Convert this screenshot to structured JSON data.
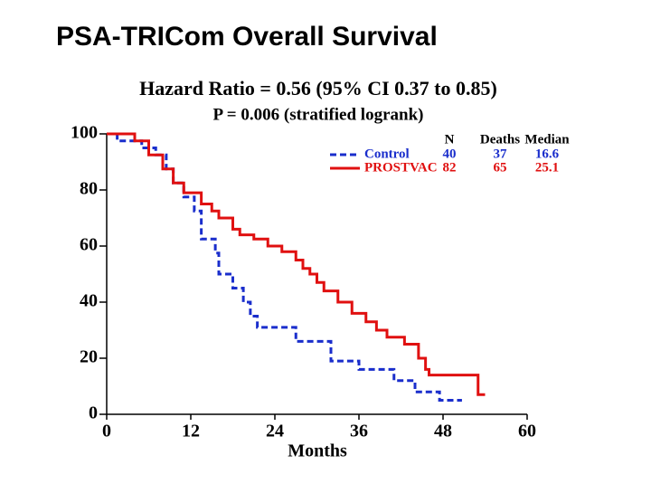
{
  "slide_title": "PSA-TRICom Overall Survival",
  "chart_data": {
    "type": "step",
    "title": "Hazard Ratio = 0.56 (95% CI 0.37 to 0.85)",
    "subtitle": "P = 0.006 (stratified logrank)",
    "x_label": "Months",
    "xlim": [
      0,
      60
    ],
    "xticks": [
      0,
      12,
      24,
      36,
      48,
      60
    ],
    "ylim": [
      0,
      100
    ],
    "yticks": [
      0,
      20,
      40,
      60,
      80,
      100
    ],
    "table_headers": [
      "N",
      "Deaths",
      "Median"
    ],
    "series": [
      {
        "name": "Control",
        "color": "#1a2ecc",
        "dash": true,
        "n": 40,
        "deaths": 37,
        "median": 16.6,
        "x": [
          0,
          1.5,
          5,
          7,
          8.5,
          9.5,
          11,
          12.5,
          13.5,
          15.5,
          16,
          18,
          19.5,
          20.5,
          21.5,
          27,
          32,
          36,
          41,
          44,
          47.5,
          50.7
        ],
        "values": [
          100,
          97.5,
          95,
          92.5,
          87.5,
          82.5,
          77.5,
          72.5,
          62.5,
          57.5,
          50,
          45,
          40,
          35,
          31,
          26,
          19,
          16,
          12,
          8,
          5,
          5
        ]
      },
      {
        "name": "PROSTVAC",
        "color": "#e01010",
        "dash": false,
        "n": 82,
        "deaths": 65,
        "median": 25.1,
        "x": [
          0,
          4,
          6,
          8,
          9.5,
          11,
          13.5,
          15,
          16,
          18,
          19,
          21,
          23,
          25,
          27,
          28,
          29,
          30,
          31,
          33,
          35,
          37,
          38.5,
          40,
          42.5,
          44.5,
          45.5,
          46,
          53,
          54
        ],
        "values": [
          100,
          97.5,
          92.5,
          87.5,
          82.5,
          79,
          75,
          72.5,
          70,
          66,
          64,
          62.5,
          60,
          58,
          55,
          52,
          50,
          47,
          44,
          40,
          36,
          33,
          30,
          27.5,
          25,
          20,
          16,
          14,
          7,
          7
        ]
      }
    ]
  }
}
